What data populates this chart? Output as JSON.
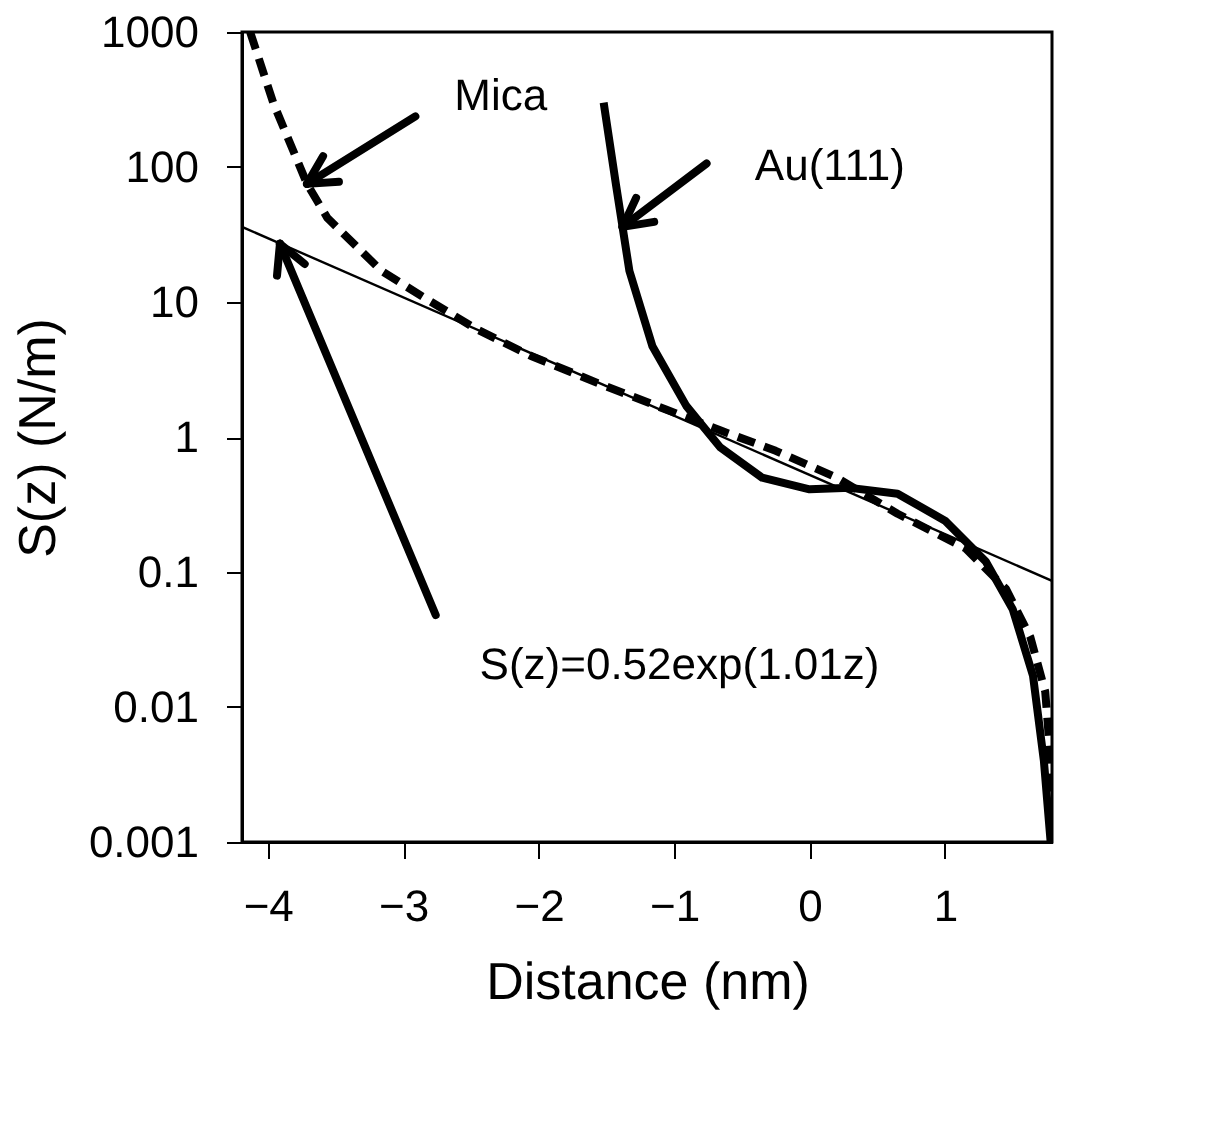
{
  "chart_data": {
    "type": "line",
    "xlabel": "Distance (nm)",
    "ylabel": "S(z) (N/m)",
    "log": "y",
    "xlim": [
      -4.19,
      1.79
    ],
    "ylim": [
      0.001,
      1000
    ],
    "xticks": [
      -4,
      -3,
      -2,
      -1,
      0,
      1
    ],
    "yticks": [
      0.001,
      0.01,
      0.1,
      1,
      10,
      100,
      1000
    ],
    "grid": false,
    "marker": "none",
    "series": [
      {
        "color": "#000000",
        "line_style": "dashed",
        "x": [
          -4.13,
          -3.96,
          -3.71,
          -3.56,
          -3.16,
          -2.86,
          -2.46,
          -2.06,
          -1.56,
          -1.06,
          -0.66,
          -0.25,
          0.2,
          0.65,
          1.15,
          1.45,
          1.63,
          1.74,
          1.78,
          1.79
        ],
        "values": [
          1000,
          300,
          75,
          42,
          17,
          11,
          6.3,
          4,
          2.5,
          1.6,
          1.12,
          0.79,
          0.5,
          0.27,
          0.15,
          0.075,
          0.033,
          0.013,
          0.004,
          0.001
        ]
      },
      {
        "color": "#000000",
        "line_style": "solid",
        "x": [
          -1.52,
          -1.43,
          -1.33,
          -1.16,
          -0.91,
          -0.66,
          -0.35,
          0.0,
          0.3,
          0.65,
          1.0,
          1.3,
          1.5,
          1.65,
          1.73,
          1.78
        ],
        "values": [
          300,
          75,
          17,
          4.7,
          1.7,
          0.84,
          0.5,
          0.41,
          0.42,
          0.38,
          0.24,
          0.12,
          0.053,
          0.017,
          0.004,
          0.001
        ]
      },
      {
        "color": "#000000",
        "line_style": "solid",
        "x": [
          -4.19,
          1.79
        ],
        "values": [
          36,
          0.086
        ]
      }
    ],
    "annotations": [
      {
        "text": "Mica",
        "x": -3.71,
        "y": 75
      },
      {
        "text": "Au(111)",
        "x": -1.38,
        "y": 36
      },
      {
        "text": "S(z)=0.52exp(1.01z)",
        "x": -3.91,
        "y": 27
      }
    ]
  }
}
